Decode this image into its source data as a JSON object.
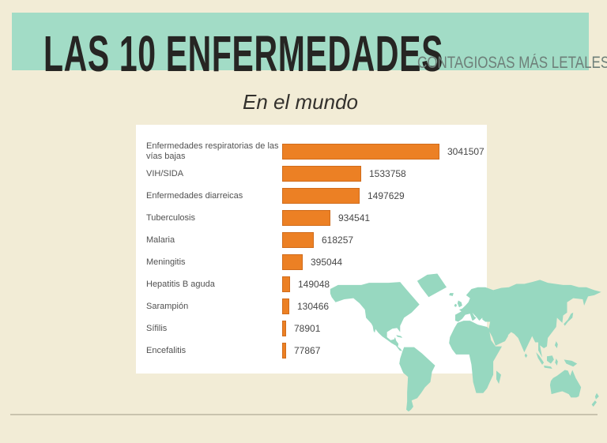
{
  "slide": {
    "title": "LAS 10 ENFERMEDADES",
    "subtitle": "CONTAGIOSAS MÁS LETALES",
    "heading": "En el mundo"
  },
  "colors": {
    "background": "#f2ecd6",
    "banner": "#a2dcc6",
    "map": "#97d8c0",
    "bar_fill": "#ec8024",
    "bar_border": "#d06c1c"
  },
  "icons": {
    "world_map": "world-map-silhouette"
  },
  "chart_data": {
    "type": "bar",
    "orientation": "horizontal",
    "title": "",
    "xlabel": "",
    "ylabel": "",
    "grid": false,
    "legend": false,
    "xlim": [
      0,
      3041507
    ],
    "bar_color": "#ec8024",
    "categories": [
      "Enfermedades respiratorias de las vías bajas",
      "VIH/SIDA",
      "Enfermedades diarreicas",
      "Tuberculosis",
      "Malaria",
      "Meningitis",
      "Hepatitis B aguda",
      "Sarampión",
      "Sífilis",
      "Encefalitis"
    ],
    "values": [
      3041507,
      1533758,
      1497629,
      934541,
      618257,
      395044,
      149048,
      130466,
      78901,
      77867
    ],
    "value_labels": [
      "3041507",
      "1533758",
      "1497629",
      "934541",
      "618257",
      "395044",
      "149048",
      "130466",
      "78901",
      "77867"
    ]
  }
}
